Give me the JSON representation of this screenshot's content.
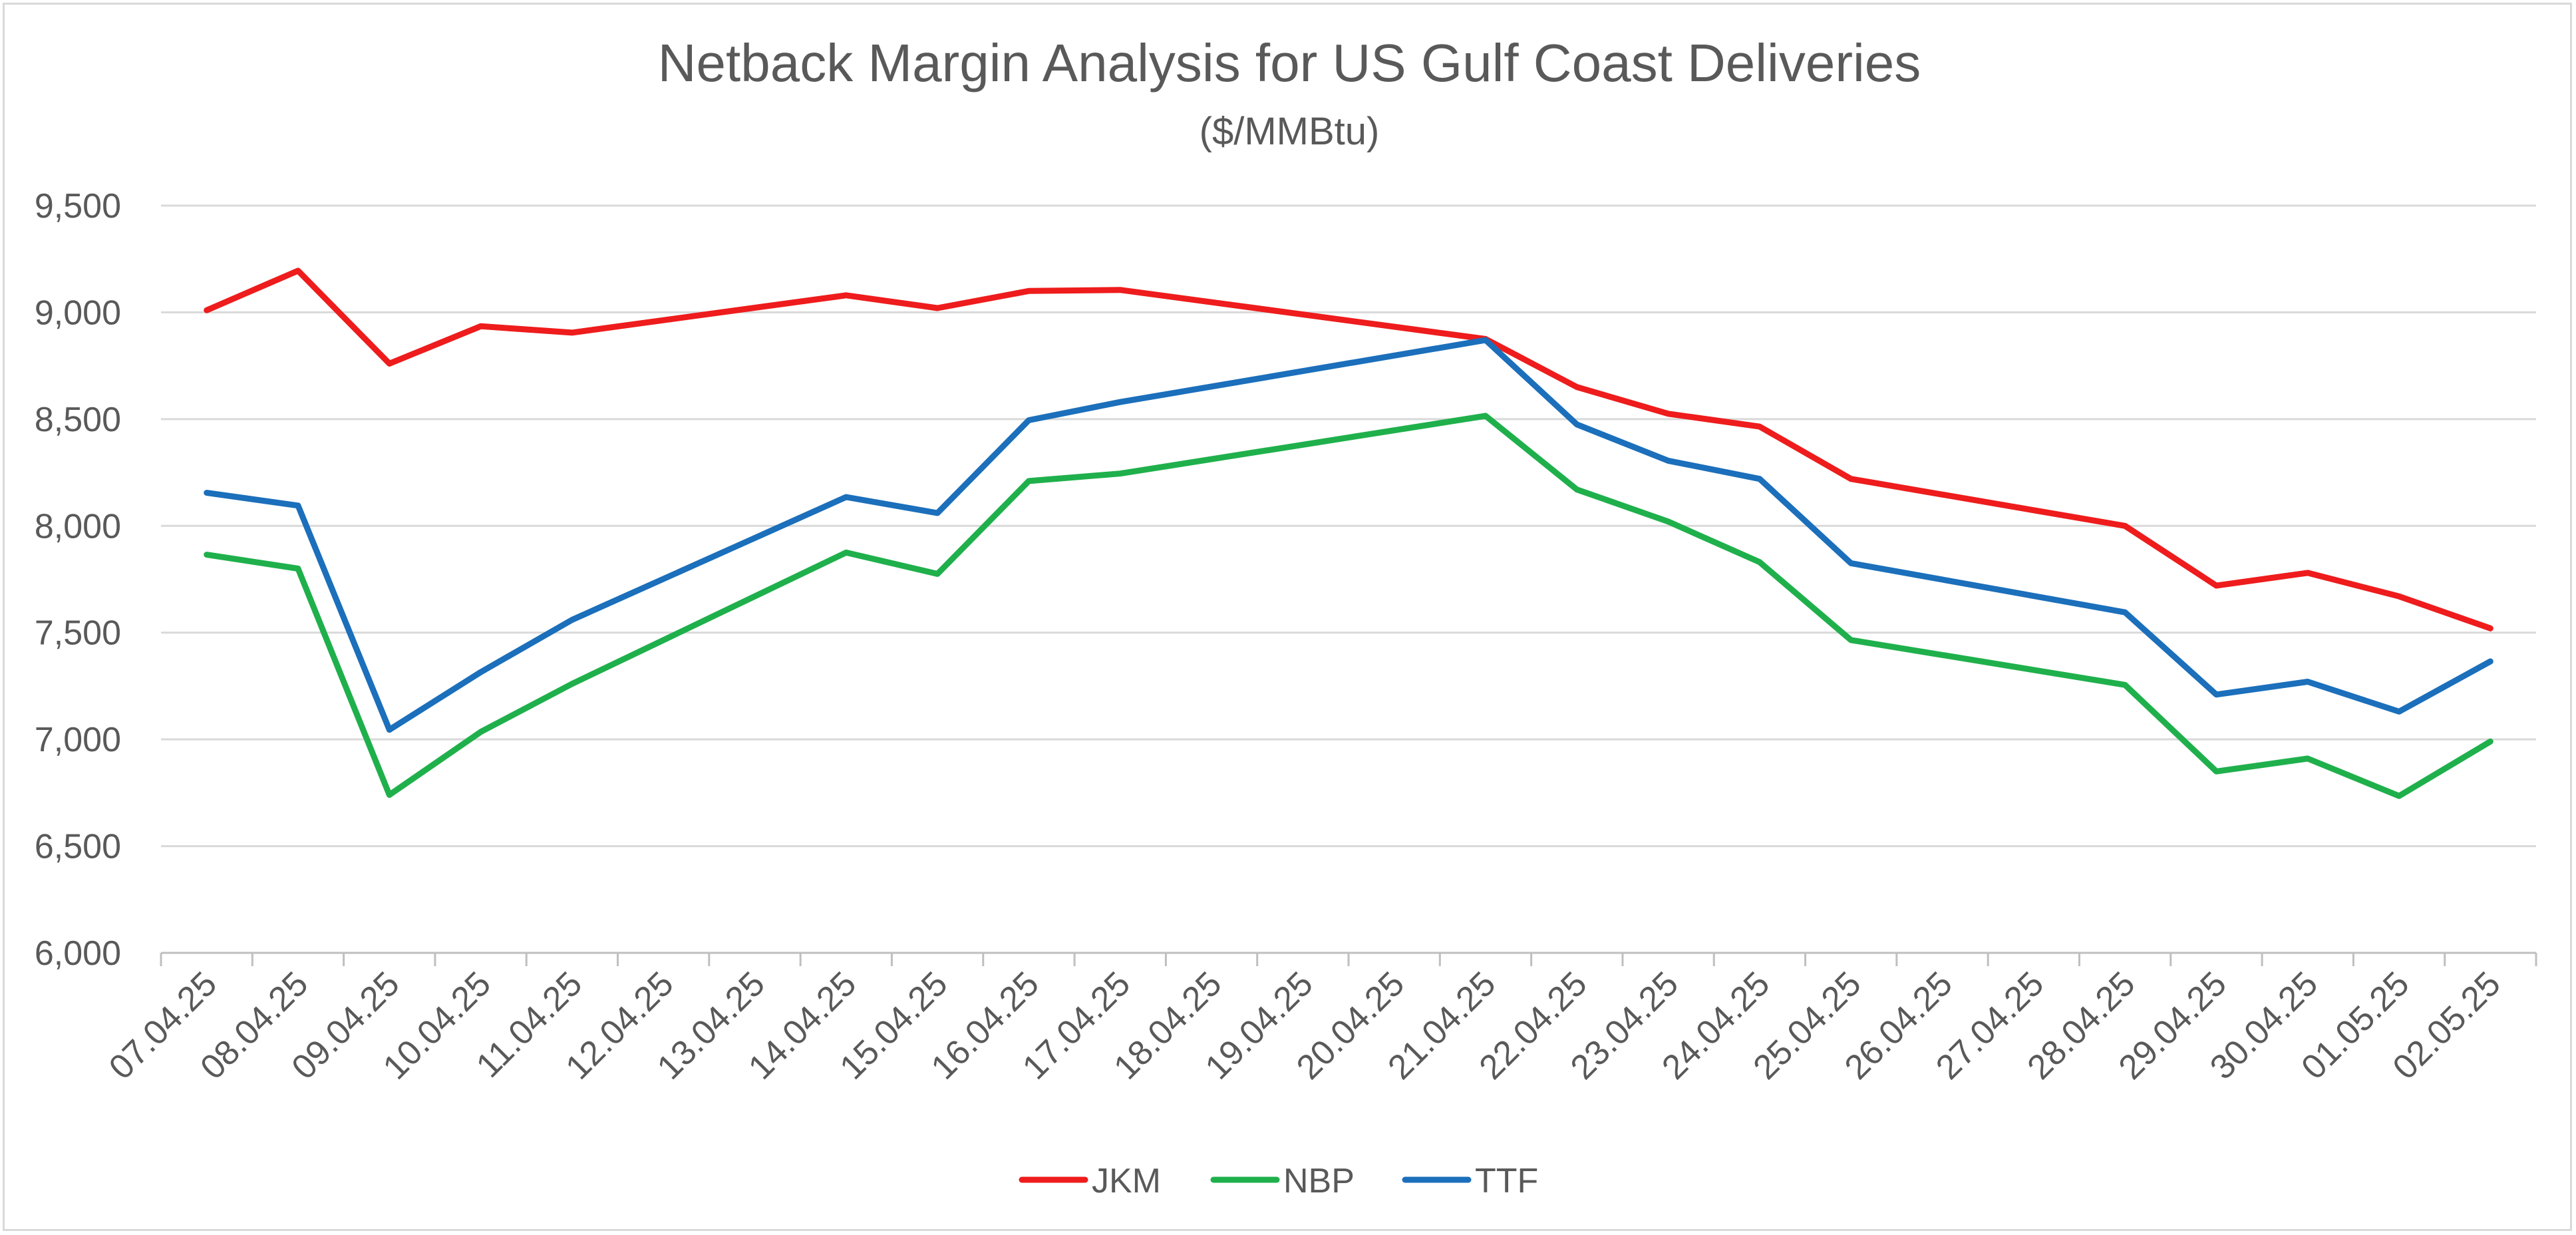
{
  "chart_data": {
    "type": "line",
    "title": "Netback Margin Analysis for US Gulf Coast Deliveries",
    "subtitle": "($/MMBtu)",
    "xlabel": "",
    "ylabel": "",
    "ylim": [
      6000,
      9500
    ],
    "yticks": [
      6000,
      6500,
      7000,
      7500,
      8000,
      8500,
      9000,
      9500
    ],
    "ytick_labels": [
      "6,000",
      "6,500",
      "7,000",
      "7,500",
      "8,000",
      "8,500",
      "9,000",
      "9,500"
    ],
    "grid": true,
    "legend_position": "bottom",
    "categories": [
      "07.04.25",
      "08.04.25",
      "09.04.25",
      "10.04.25",
      "11.04.25",
      "12.04.25",
      "13.04.25",
      "14.04.25",
      "15.04.25",
      "16.04.25",
      "17.04.25",
      "18.04.25",
      "19.04.25",
      "20.04.25",
      "21.04.25",
      "22.04.25",
      "23.04.25",
      "24.04.25",
      "25.04.25",
      "26.04.25",
      "27.04.25",
      "28.04.25",
      "29.04.25",
      "30.04.25",
      "01.05.25",
      "02.05.25"
    ],
    "series": [
      {
        "name": "JKM",
        "color": "#ee1c1c",
        "values": [
          9010,
          9195,
          8760,
          8935,
          8905,
          null,
          null,
          9080,
          9020,
          9100,
          9105,
          null,
          null,
          null,
          8875,
          8650,
          8525,
          8465,
          8220,
          null,
          null,
          8000,
          7720,
          7780,
          7670,
          7520
        ]
      },
      {
        "name": "NBP",
        "color": "#1fb04c",
        "values": [
          7865,
          7800,
          6740,
          7035,
          7260,
          null,
          null,
          7875,
          7775,
          8210,
          8245,
          null,
          null,
          null,
          8515,
          8170,
          8020,
          7830,
          7465,
          null,
          null,
          7255,
          6850,
          6910,
          6735,
          6990
        ]
      },
      {
        "name": "TTF",
        "color": "#1b6fbb",
        "values": [
          8155,
          8095,
          7045,
          7315,
          7560,
          null,
          null,
          8135,
          8060,
          8495,
          8580,
          null,
          null,
          null,
          8870,
          8475,
          8305,
          8220,
          7825,
          null,
          null,
          7595,
          7210,
          7270,
          7130,
          7365
        ]
      }
    ]
  }
}
